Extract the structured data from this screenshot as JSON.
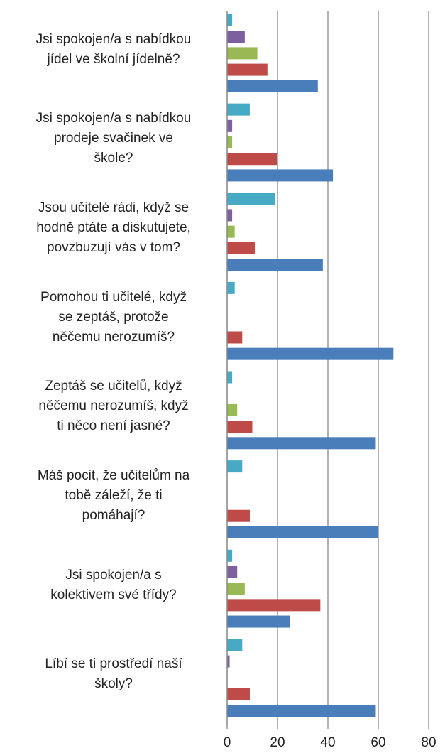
{
  "chart_data": {
    "type": "bar",
    "orientation": "horizontal",
    "categories": [
      "Jsi spokojen/a s nabídkou\njídel ve školní jídelně?",
      "Jsi spokojen/a s nabídkou\nprodeje svačinek ve\nškole?",
      "Jsou učitelé rádi, když se\nhodně ptáte a diskutujete,\npovzbuzují vás v tom?",
      "Pomohou ti učitelé, když\nse zeptáš, protože\nněčemu nerozumíš?",
      "Zeptáš se učitelů, když\nněčemu nerozumíš, když\nti něco není jasné?",
      "Máš pocit, že učitelům na\ntobě záleží, že ti\npomáhají?",
      "Jsi spokojen/a s\nkolektivem své třídy?",
      "Líbí se ti prostředí naší\nškoly?"
    ],
    "series": [
      {
        "color": "#46aac5",
        "values": [
          2,
          9,
          19,
          3,
          2,
          6,
          2,
          6
        ]
      },
      {
        "color": "#7d60a0",
        "values": [
          7,
          2,
          2,
          0,
          0,
          0,
          4,
          1
        ]
      },
      {
        "color": "#98b954",
        "values": [
          12,
          2,
          3,
          0,
          4,
          0,
          7,
          0
        ]
      },
      {
        "color": "#be4b48",
        "values": [
          16,
          20,
          11,
          6,
          10,
          9,
          37,
          9
        ]
      },
      {
        "color": "#4a7ebb",
        "values": [
          36,
          42,
          38,
          66,
          59,
          60,
          25,
          59
        ]
      }
    ],
    "xlim": [
      0,
      80
    ],
    "xticks": [
      0,
      20,
      40,
      60,
      80
    ],
    "grid": true
  }
}
